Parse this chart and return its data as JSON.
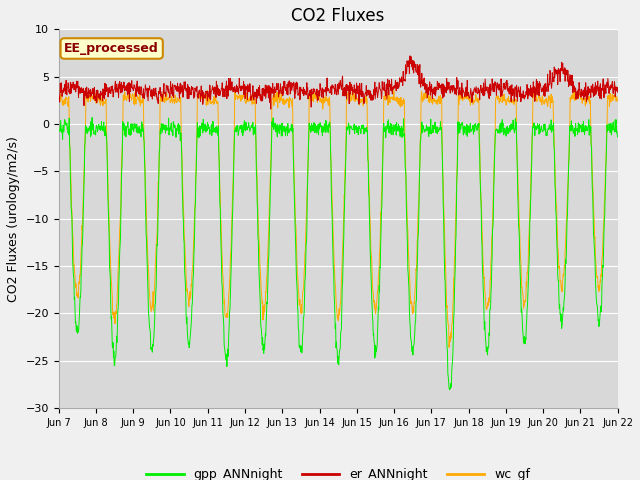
{
  "title": "CO2 Fluxes",
  "ylabel": "CO2 Fluxes (urology/m2/s)",
  "xlabel": "",
  "ylim": [
    -30,
    10
  ],
  "yticks": [
    10,
    5,
    0,
    -5,
    -10,
    -15,
    -20,
    -25,
    -30
  ],
  "background_color": "#d8d8d8",
  "fig_bg_color": "#f0f0f0",
  "gpp_color": "#00ee00",
  "er_color": "#cc0000",
  "wc_color": "#ffaa00",
  "annotation_text": "EE_processed",
  "annotation_color": "#8b0000",
  "annotation_bg": "#ffffcc",
  "legend_labels": [
    "gpp_ANNnight",
    "er_ANNnight",
    "wc_gf"
  ],
  "n_days": 15,
  "points_per_day": 96,
  "xtick_labels": [
    "Jun 7",
    "Jun 8",
    "Jun 9",
    "Jun 10",
    "Jun 11",
    "Jun 12",
    "Jun 13",
    "Jun 14",
    "Jun 15",
    "Jun 16",
    "Jun 17",
    "Jun 18",
    "Jun 19",
    "Jun 20",
    "Jun 21",
    "Jun 22"
  ],
  "title_fontsize": 12,
  "axis_fontsize": 9,
  "tick_fontsize": 8,
  "linewidth": 0.7
}
